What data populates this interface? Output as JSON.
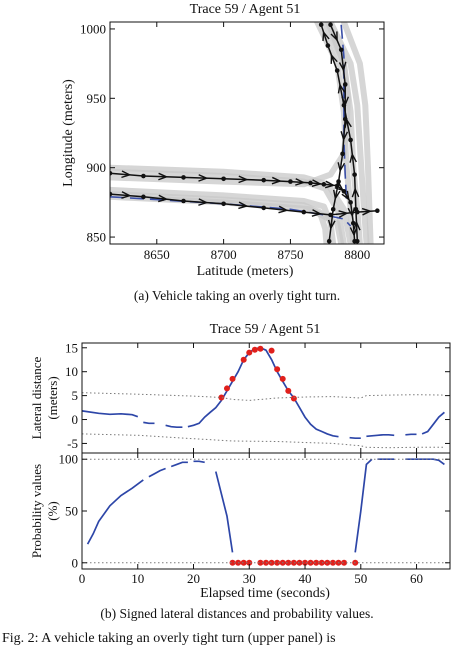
{
  "chart_data": [
    {
      "type": "line",
      "title": "Trace 59 / Agent 51",
      "xlabel": "Latitude (meters)",
      "ylabel": "Longitude (meters)",
      "xlim": [
        8615,
        8820
      ],
      "ylim": [
        845,
        1005
      ],
      "xticks": [
        "8650",
        "8700",
        "8750",
        "8800"
      ],
      "yticks": [
        "850",
        "900",
        "950",
        "1000"
      ],
      "grid": false,
      "series": [
        {
          "role": "background-traces",
          "color": "#c8c8c8",
          "lines": [
            [
              [
                8615,
                900
              ],
              [
                8700,
                897
              ],
              [
                8760,
                893
              ],
              [
                8778,
                888
              ],
              [
                8790,
                870
              ],
              [
                8795,
                845
              ]
            ],
            [
              [
                8615,
                897
              ],
              [
                8700,
                894
              ],
              [
                8760,
                890
              ],
              [
                8776,
                885
              ],
              [
                8786,
                868
              ],
              [
                8790,
                845
              ]
            ],
            [
              [
                8615,
                884
              ],
              [
                8700,
                880
              ],
              [
                8760,
                876
              ],
              [
                8775,
                872
              ],
              [
                8780,
                860
              ],
              [
                8782,
                845
              ]
            ],
            [
              [
                8615,
                881
              ],
              [
                8700,
                877
              ],
              [
                8760,
                873
              ],
              [
                8772,
                868
              ],
              [
                8776,
                856
              ],
              [
                8777,
                845
              ]
            ],
            [
              [
                8770,
                1005
              ],
              [
                8785,
                975
              ],
              [
                8790,
                940
              ],
              [
                8792,
                900
              ],
              [
                8795,
                870
              ],
              [
                8797,
                845
              ]
            ],
            [
              [
                8775,
                1005
              ],
              [
                8790,
                975
              ],
              [
                8795,
                940
              ],
              [
                8797,
                900
              ],
              [
                8800,
                870
              ],
              [
                8802,
                845
              ]
            ],
            [
              [
                8780,
                1005
              ],
              [
                8795,
                975
              ],
              [
                8800,
                945
              ],
              [
                8803,
                900
              ],
              [
                8805,
                870
              ],
              [
                8807,
                845
              ]
            ],
            [
              [
                8790,
                1005
              ],
              [
                8802,
                975
              ],
              [
                8806,
                945
              ],
              [
                8808,
                900
              ],
              [
                8810,
                845
              ]
            ],
            [
              [
                8778,
                1005
              ],
              [
                8790,
                975
              ],
              [
                8793,
                950
              ],
              [
                8792,
                930
              ],
              [
                8790,
                910
              ],
              [
                8780,
                895
              ],
              [
                8760,
                888
              ],
              [
                8700,
                890
              ],
              [
                8615,
                893
              ]
            ],
            [
              [
                8615,
                879
              ],
              [
                8700,
                875
              ],
              [
                8765,
                870
              ],
              [
                8785,
                860
              ],
              [
                8788,
                845
              ]
            ]
          ]
        },
        {
          "role": "vehicle-trajectory",
          "color": "#111111",
          "lines": [
            [
              [
                8615,
                896
              ],
              [
                8640,
                894
              ],
              [
                8670,
                893
              ],
              [
                8700,
                892
              ],
              [
                8730,
                891
              ],
              [
                8750,
                890
              ],
              [
                8765,
                889
              ],
              [
                8775,
                888
              ],
              [
                8785,
                887
              ],
              [
                8790,
                883
              ],
              [
                8795,
                875
              ],
              [
                8797,
                860
              ],
              [
                8798,
                847
              ]
            ],
            [
              [
                8800,
                847
              ],
              [
                8799,
                870
              ],
              [
                8798,
                895
              ],
              [
                8795,
                920
              ],
              [
                8790,
                945
              ],
              [
                8785,
                970
              ],
              [
                8778,
                988
              ],
              [
                8773,
                1003
              ]
            ],
            [
              [
                8615,
                881
              ],
              [
                8640,
                879
              ],
              [
                8670,
                876
              ],
              [
                8700,
                874
              ],
              [
                8730,
                871
              ],
              [
                8760,
                868
              ],
              [
                8780,
                866
              ],
              [
                8800,
                868
              ],
              [
                8815,
                869
              ]
            ],
            [
              [
                8780,
                1003
              ],
              [
                8788,
                985
              ],
              [
                8791,
                960
              ],
              [
                8791,
                935
              ],
              [
                8789,
                910
              ],
              [
                8786,
                890
              ],
              [
                8782,
                870
              ],
              [
                8779,
                847
              ]
            ]
          ]
        },
        {
          "role": "reference-path",
          "color": "#3a4fa8",
          "lines": [
            [
              [
                8615,
                879
              ],
              [
                8650,
                877
              ],
              [
                8700,
                874
              ],
              [
                8750,
                870
              ],
              [
                8775,
                866
              ],
              [
                8790,
                863
              ],
              [
                8795,
                858
              ]
            ],
            [
              [
                8788,
                1003
              ],
              [
                8790,
                980
              ],
              [
                8790,
                950
              ],
              [
                8790,
                920
              ],
              [
                8791,
                895
              ],
              [
                8792,
                875
              ]
            ]
          ]
        }
      ],
      "caption": "(a) Vehicle taking an overly tight turn."
    },
    {
      "type": "line",
      "title": "Trace 59 / Agent 51",
      "xlabel": "Elapsed time (seconds)",
      "ylabel": "Lateral distance (meters)",
      "xlim": [
        0,
        66
      ],
      "ylim": [
        -7,
        16
      ],
      "yticks": [
        "15",
        "10",
        "5",
        "0",
        "-5"
      ],
      "series": [
        {
          "name": "lateral distance",
          "color": "#2d46a8",
          "x": [
            0,
            3,
            5,
            7,
            9,
            10
          ],
          "y": [
            1.8,
            1.3,
            1.1,
            1.2,
            1.0,
            0.6
          ]
        },
        {
          "name": "lateral distance",
          "color": "#2d46a8",
          "x": [
            11,
            12,
            13
          ],
          "y": [
            -0.6,
            -0.8,
            -0.8
          ]
        },
        {
          "name": "lateral distance",
          "color": "#2d46a8",
          "x": [
            15,
            16,
            17,
            18
          ],
          "y": [
            -1.2,
            -1.5,
            -1.6,
            -1.6
          ]
        },
        {
          "name": "lateral distance",
          "color": "#2d46a8",
          "x": [
            19,
            20,
            21,
            22,
            23,
            24,
            25,
            26,
            27,
            28,
            29,
            30,
            31,
            32,
            33,
            34,
            35,
            36,
            37,
            38,
            39,
            40,
            41,
            42,
            43,
            44,
            45,
            46
          ],
          "y": [
            -1.5,
            -1.2,
            -0.8,
            0.5,
            1.5,
            2.5,
            4.0,
            6.0,
            8.0,
            10.0,
            12.5,
            14.0,
            14.8,
            15.0,
            14.5,
            12.5,
            10.0,
            8.0,
            6.0,
            4.5,
            2.5,
            0.5,
            -1.0,
            -2.0,
            -2.5,
            -3.0,
            -3.4,
            -3.6
          ]
        },
        {
          "name": "lateral distance",
          "color": "#2d46a8",
          "x": [
            48,
            49,
            50
          ],
          "y": [
            -3.8,
            -3.9,
            -3.9
          ]
        },
        {
          "name": "lateral distance",
          "color": "#2d46a8",
          "x": [
            51,
            52,
            53,
            54,
            55,
            56
          ],
          "y": [
            -3.5,
            -3.4,
            -3.3,
            -3.2,
            -3.2,
            -3.3
          ]
        },
        {
          "name": "lateral distance",
          "color": "#2d46a8",
          "x": [
            58,
            59,
            60
          ],
          "y": [
            -3.2,
            -3.1,
            -3.1
          ]
        },
        {
          "name": "lateral distance",
          "color": "#2d46a8",
          "x": [
            61,
            62,
            63,
            64,
            65
          ],
          "y": [
            -3.0,
            -2.5,
            -1.0,
            0.5,
            1.5
          ]
        },
        {
          "name": "flagged",
          "type": "scatter",
          "color": "#e0201c",
          "x": [
            25,
            26,
            27,
            29,
            30,
            31,
            32,
            34,
            35,
            36,
            37,
            38
          ],
          "y": [
            4.6,
            6.5,
            8.5,
            12.5,
            14.0,
            14.6,
            14.8,
            14.4,
            10.5,
            8.5,
            6.0,
            4.4
          ]
        },
        {
          "name": "upper threshold",
          "style": "dotted",
          "color": "#7a7a7a",
          "x": [
            0,
            10,
            20,
            25,
            27,
            30,
            35,
            40,
            45,
            50,
            51,
            55,
            60,
            65
          ],
          "y": [
            5.6,
            5.3,
            4.9,
            4.6,
            4.2,
            4.0,
            4.5,
            4.7,
            4.8,
            4.5,
            5.0,
            5.1,
            5.2,
            5.1
          ]
        },
        {
          "name": "lower threshold",
          "style": "dotted",
          "color": "#7a7a7a",
          "x": [
            0,
            10,
            20,
            27,
            35,
            40,
            45,
            50,
            51,
            55,
            60,
            65
          ],
          "y": [
            -3.0,
            -3.3,
            -4.0,
            -4.5,
            -4.6,
            -4.8,
            -5.0,
            -5.5,
            -5.8,
            -5.9,
            -5.8,
            -5.8
          ]
        }
      ]
    },
    {
      "type": "line",
      "xlabel": "Elapsed time (seconds)",
      "ylabel": "Probability values (%)",
      "xlim": [
        0,
        66
      ],
      "ylim": [
        -6,
        106
      ],
      "xticks": [
        "0",
        "10",
        "20",
        "30",
        "40",
        "50",
        "60"
      ],
      "yticks": [
        "100",
        "50",
        "0"
      ],
      "series": [
        {
          "name": "probability",
          "color": "#2d46a8",
          "x": [
            1,
            2,
            3,
            5,
            7,
            9,
            11
          ],
          "y": [
            18,
            28,
            40,
            55,
            65,
            72,
            80
          ]
        },
        {
          "name": "probability",
          "color": "#2d46a8",
          "x": [
            12,
            13,
            14,
            15
          ],
          "y": [
            83,
            86,
            89,
            91
          ]
        },
        {
          "name": "probability",
          "color": "#2d46a8",
          "x": [
            16,
            17,
            18,
            19
          ],
          "y": [
            93,
            95,
            97,
            97
          ]
        },
        {
          "name": "probability",
          "color": "#2d46a8",
          "x": [
            20,
            21,
            22
          ],
          "y": [
            98,
            98,
            97
          ]
        },
        {
          "name": "probability",
          "color": "#2d46a8",
          "x": [
            24,
            26,
            27
          ],
          "y": [
            88,
            45,
            10
          ]
        },
        {
          "name": "probability",
          "color": "#2d46a8",
          "x": [
            49,
            50,
            51,
            52
          ],
          "y": [
            10,
            50,
            95,
            100
          ]
        },
        {
          "name": "probability",
          "color": "#2d46a8",
          "x": [
            53,
            54,
            55,
            56
          ],
          "y": [
            100,
            100,
            100,
            100
          ]
        },
        {
          "name": "probability",
          "color": "#2d46a8",
          "x": [
            58,
            59,
            60,
            61,
            62,
            63,
            64,
            65
          ],
          "y": [
            100,
            100,
            100,
            100,
            100,
            100,
            99,
            95
          ]
        },
        {
          "name": "flagged",
          "type": "scatter",
          "color": "#e0201c",
          "x": [
            27,
            28,
            29,
            30,
            32,
            33,
            34,
            35,
            36,
            37,
            38,
            39,
            40,
            41,
            42,
            43,
            44,
            45,
            46,
            47,
            49
          ],
          "y": [
            0,
            0,
            0,
            0,
            0,
            0,
            0,
            0,
            0,
            0,
            0,
            0,
            0,
            0,
            0,
            0,
            0,
            0,
            0,
            0,
            0
          ]
        },
        {
          "name": "reference 100",
          "style": "dotted",
          "color": "#7a7a7a",
          "x": [
            0,
            66
          ],
          "y": [
            100,
            100
          ]
        },
        {
          "name": "reference 0",
          "style": "dotted",
          "color": "#7a7a7a",
          "x": [
            0,
            66
          ],
          "y": [
            0,
            0
          ]
        }
      ],
      "caption": "(b) Signed lateral distances and probability values."
    }
  ],
  "footer_text": "Fig. 2: A vehicle taking an overly tight turn (upper panel) is"
}
